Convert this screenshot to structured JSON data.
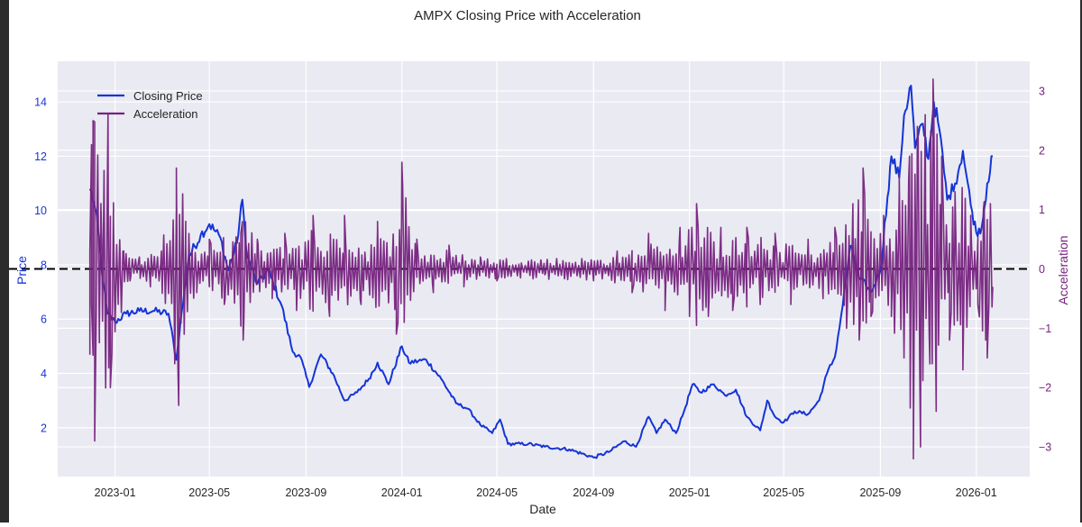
{
  "chart_data": {
    "type": "line",
    "title": "AMPX Closing Price with Acceleration",
    "xlabel": "Date",
    "ylabel": "Price",
    "y2label": "Acceleration",
    "x_ticks": [
      "2023-01",
      "2023-05",
      "2023-09",
      "2024-01",
      "2024-05",
      "2024-09",
      "2025-01",
      "2025-05",
      "2025-09",
      "2026-01"
    ],
    "y_ticks": [
      "2",
      "4",
      "6",
      "8",
      "10",
      "12",
      "14"
    ],
    "y2_ticks": [
      "−3",
      "−2",
      "−1",
      "0",
      "1",
      "2",
      "3"
    ],
    "xlim": [
      "2022-10-20",
      "2026-03-10"
    ],
    "ylim": [
      0.2,
      15.5
    ],
    "y2lim": [
      -3.5,
      3.5
    ],
    "grid": true,
    "legend_position": "top-left",
    "colors": {
      "price": "#1434d6",
      "acceleration": "#76237e",
      "zero_line": "#000000",
      "plot_bg": "#eaeaf2",
      "grid": "#ffffff"
    },
    "reference_line": {
      "axis": "y2",
      "value": 0,
      "style": "dashed"
    },
    "series": [
      {
        "name": "Closing Price",
        "axis": "left",
        "points": [
          [
            "2022-11-30",
            10.8
          ],
          [
            "2022-12-05",
            10.3
          ],
          [
            "2022-12-10",
            9.4
          ],
          [
            "2022-12-15",
            7.8
          ],
          [
            "2022-12-22",
            6.2
          ],
          [
            "2023-01-01",
            5.9
          ],
          [
            "2023-01-15",
            6.2
          ],
          [
            "2023-02-01",
            6.3
          ],
          [
            "2023-02-20",
            6.3
          ],
          [
            "2023-03-10",
            6.2
          ],
          [
            "2023-03-20",
            4.5
          ],
          [
            "2023-03-25",
            5.8
          ],
          [
            "2023-04-05",
            8.3
          ],
          [
            "2023-04-20",
            9.1
          ],
          [
            "2023-05-01",
            9.5
          ],
          [
            "2023-05-15",
            9.0
          ],
          [
            "2023-05-25",
            7.8
          ],
          [
            "2023-06-05",
            8.8
          ],
          [
            "2023-06-12",
            10.4
          ],
          [
            "2023-06-18",
            8.3
          ],
          [
            "2023-07-01",
            7.3
          ],
          [
            "2023-07-15",
            7.8
          ],
          [
            "2023-08-01",
            6.5
          ],
          [
            "2023-08-15",
            4.8
          ],
          [
            "2023-08-25",
            4.6
          ],
          [
            "2023-09-05",
            3.5
          ],
          [
            "2023-09-20",
            4.7
          ],
          [
            "2023-10-05",
            4.0
          ],
          [
            "2023-10-20",
            3.0
          ],
          [
            "2023-11-05",
            3.3
          ],
          [
            "2023-11-20",
            3.8
          ],
          [
            "2023-12-01",
            4.4
          ],
          [
            "2023-12-15",
            3.6
          ],
          [
            "2024-01-01",
            5.0
          ],
          [
            "2024-01-10",
            4.4
          ],
          [
            "2024-02-01",
            4.5
          ],
          [
            "2024-02-20",
            3.8
          ],
          [
            "2024-03-10",
            2.9
          ],
          [
            "2024-03-25",
            2.7
          ],
          [
            "2024-04-10",
            2.1
          ],
          [
            "2024-04-25",
            1.8
          ],
          [
            "2024-05-05",
            2.3
          ],
          [
            "2024-05-15",
            1.4
          ],
          [
            "2024-06-10",
            1.4
          ],
          [
            "2024-07-01",
            1.3
          ],
          [
            "2024-08-01",
            1.2
          ],
          [
            "2024-09-01",
            0.9
          ],
          [
            "2024-09-20",
            1.1
          ],
          [
            "2024-10-10",
            1.5
          ],
          [
            "2024-10-25",
            1.3
          ],
          [
            "2024-11-10",
            2.4
          ],
          [
            "2024-11-20",
            1.8
          ],
          [
            "2024-12-01",
            2.3
          ],
          [
            "2024-12-15",
            1.8
          ],
          [
            "2024-12-25",
            2.6
          ],
          [
            "2025-01-05",
            3.6
          ],
          [
            "2025-01-15",
            3.3
          ],
          [
            "2025-02-01",
            3.6
          ],
          [
            "2025-02-15",
            3.2
          ],
          [
            "2025-03-01",
            3.4
          ],
          [
            "2025-03-15",
            2.4
          ],
          [
            "2025-04-01",
            1.9
          ],
          [
            "2025-04-10",
            3.0
          ],
          [
            "2025-04-20",
            2.4
          ],
          [
            "2025-05-01",
            2.2
          ],
          [
            "2025-05-15",
            2.6
          ],
          [
            "2025-06-01",
            2.5
          ],
          [
            "2025-06-15",
            3.0
          ],
          [
            "2025-06-25",
            4.0
          ],
          [
            "2025-07-05",
            4.6
          ],
          [
            "2025-07-15",
            6.5
          ],
          [
            "2025-07-25",
            8.7
          ],
          [
            "2025-08-05",
            7.5
          ],
          [
            "2025-08-20",
            7.0
          ],
          [
            "2025-09-01",
            7.8
          ],
          [
            "2025-09-10",
            10.5
          ],
          [
            "2025-09-15",
            12.0
          ],
          [
            "2025-09-25",
            11.2
          ],
          [
            "2025-10-01",
            13.5
          ],
          [
            "2025-10-10",
            14.6
          ],
          [
            "2025-10-15",
            12.3
          ],
          [
            "2025-10-25",
            13.2
          ],
          [
            "2025-11-01",
            11.9
          ],
          [
            "2025-11-08",
            14.0
          ],
          [
            "2025-11-15",
            13.0
          ],
          [
            "2025-11-25",
            10.4
          ],
          [
            "2025-12-05",
            11.0
          ],
          [
            "2025-12-15",
            12.2
          ],
          [
            "2025-12-25",
            10.2
          ],
          [
            "2026-01-01",
            9.2
          ],
          [
            "2026-01-08",
            9.4
          ],
          [
            "2026-01-15",
            11.0
          ],
          [
            "2026-01-22",
            12.0
          ]
        ]
      },
      {
        "name": "Acceleration",
        "axis": "right",
        "points": [
          [
            "2022-11-30",
            0.3
          ],
          [
            "2022-12-02",
            -0.6
          ],
          [
            "2022-12-04",
            2.5
          ],
          [
            "2022-12-06",
            -2.9
          ],
          [
            "2022-12-09",
            1.0
          ],
          [
            "2022-12-12",
            -1.0
          ],
          [
            "2022-12-15",
            0.5
          ],
          [
            "2022-12-19",
            -0.4
          ],
          [
            "2022-12-23",
            2.6
          ],
          [
            "2022-12-26",
            -2.0
          ],
          [
            "2022-12-30",
            0.8
          ],
          [
            "2023-01-05",
            -0.5
          ],
          [
            "2023-01-12",
            0.3
          ],
          [
            "2023-01-20",
            -0.2
          ],
          [
            "2023-02-01",
            0.2
          ],
          [
            "2023-02-15",
            -0.3
          ],
          [
            "2023-03-01",
            0.3
          ],
          [
            "2023-03-20",
            1.7
          ],
          [
            "2023-03-23",
            -2.3
          ],
          [
            "2023-04-01",
            0.4
          ],
          [
            "2023-04-15",
            -0.4
          ],
          [
            "2023-05-01",
            0.5
          ],
          [
            "2023-05-20",
            -0.6
          ],
          [
            "2023-06-10",
            0.6
          ],
          [
            "2023-06-13",
            -1.2
          ],
          [
            "2023-07-01",
            0.5
          ],
          [
            "2023-07-20",
            -0.5
          ],
          [
            "2023-08-05",
            0.6
          ],
          [
            "2023-08-20",
            -0.7
          ],
          [
            "2023-09-10",
            0.9
          ],
          [
            "2023-10-01",
            -0.8
          ],
          [
            "2023-10-20",
            0.9
          ],
          [
            "2023-11-10",
            -0.6
          ],
          [
            "2023-12-01",
            0.8
          ],
          [
            "2023-12-25",
            -1.1
          ],
          [
            "2024-01-01",
            1.8
          ],
          [
            "2024-01-04",
            -0.9
          ],
          [
            "2024-01-20",
            0.5
          ],
          [
            "2024-02-10",
            -0.4
          ],
          [
            "2024-03-01",
            0.4
          ],
          [
            "2024-03-20",
            -0.3
          ],
          [
            "2024-04-10",
            0.2
          ],
          [
            "2024-05-01",
            -0.2
          ],
          [
            "2024-06-01",
            0.1
          ],
          [
            "2024-07-01",
            -0.1
          ],
          [
            "2024-08-01",
            0.1
          ],
          [
            "2024-09-01",
            -0.2
          ],
          [
            "2024-10-01",
            0.3
          ],
          [
            "2024-10-20",
            -0.4
          ],
          [
            "2024-11-10",
            0.6
          ],
          [
            "2024-12-01",
            -0.7
          ],
          [
            "2024-12-20",
            0.7
          ],
          [
            "2025-01-01",
            -0.8
          ],
          [
            "2025-01-10",
            1.1
          ],
          [
            "2025-01-25",
            -0.8
          ],
          [
            "2025-02-10",
            0.7
          ],
          [
            "2025-02-25",
            -0.7
          ],
          [
            "2025-03-15",
            0.7
          ],
          [
            "2025-04-01",
            -0.6
          ],
          [
            "2025-04-20",
            0.6
          ],
          [
            "2025-05-10",
            -0.6
          ],
          [
            "2025-06-01",
            0.5
          ],
          [
            "2025-06-20",
            -0.5
          ],
          [
            "2025-07-05",
            0.7
          ],
          [
            "2025-07-20",
            -1.0
          ],
          [
            "2025-07-28",
            1.1
          ],
          [
            "2025-08-05",
            -1.2
          ],
          [
            "2025-08-10",
            1.7
          ],
          [
            "2025-08-20",
            -0.8
          ],
          [
            "2025-09-05",
            0.9
          ],
          [
            "2025-09-15",
            -0.8
          ],
          [
            "2025-09-25",
            1.6
          ],
          [
            "2025-10-01",
            -1.5
          ],
          [
            "2025-10-08",
            1.9
          ],
          [
            "2025-10-13",
            -3.2
          ],
          [
            "2025-10-18",
            2.4
          ],
          [
            "2025-10-22",
            -3.0
          ],
          [
            "2025-10-28",
            2.6
          ],
          [
            "2025-11-03",
            -1.6
          ],
          [
            "2025-11-07",
            3.2
          ],
          [
            "2025-11-11",
            -2.4
          ],
          [
            "2025-11-18",
            1.9
          ],
          [
            "2025-11-28",
            -1.2
          ],
          [
            "2025-12-05",
            1.3
          ],
          [
            "2025-12-15",
            -1.7
          ],
          [
            "2025-12-25",
            0.9
          ],
          [
            "2026-01-03",
            -0.6
          ],
          [
            "2026-01-10",
            1.0
          ],
          [
            "2026-01-15",
            -1.5
          ],
          [
            "2026-01-19",
            1.1
          ],
          [
            "2026-01-22",
            -0.3
          ]
        ]
      }
    ]
  }
}
